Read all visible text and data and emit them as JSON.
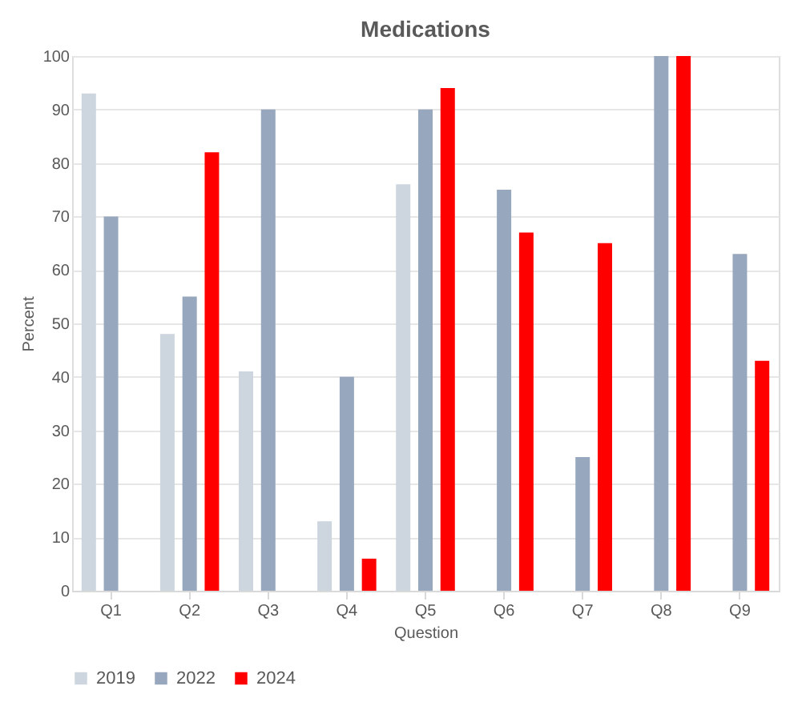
{
  "chart_data": {
    "type": "bar",
    "title": "Medications",
    "xlabel": "Question",
    "ylabel": "Percent",
    "categories": [
      "Q1",
      "Q2",
      "Q3",
      "Q4",
      "Q5",
      "Q6",
      "Q7",
      "Q8",
      "Q9"
    ],
    "series": [
      {
        "name": "2019",
        "color": "#cdd5df",
        "values": [
          93,
          48,
          41,
          13,
          76,
          null,
          null,
          null,
          null
        ]
      },
      {
        "name": "2022",
        "color": "#97a7bd",
        "values": [
          70,
          55,
          90,
          40,
          90,
          75,
          25,
          100,
          63
        ]
      },
      {
        "name": "2024",
        "color": "#ff0000",
        "values": [
          null,
          82,
          null,
          6,
          94,
          67,
          65,
          100,
          43
        ]
      }
    ],
    "ylim": [
      0,
      100
    ],
    "yticks": [
      0,
      10,
      20,
      30,
      40,
      50,
      60,
      70,
      80,
      90,
      100
    ],
    "grid": "y",
    "legend": "bottom"
  }
}
